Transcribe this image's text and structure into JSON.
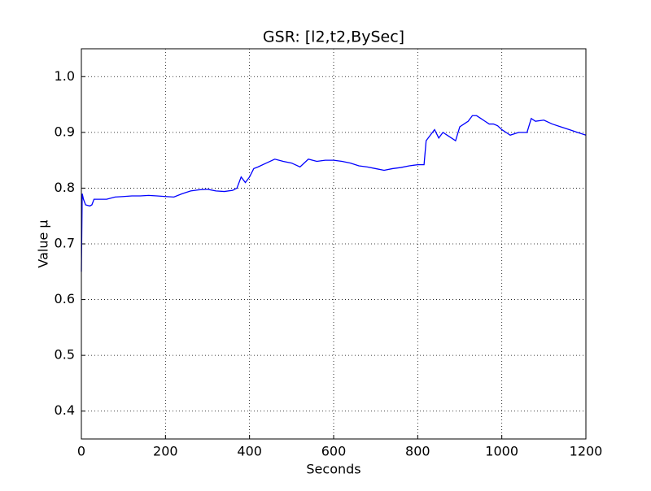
{
  "chart_data": {
    "type": "line",
    "title": "GSR: [l2,t2,BySec]",
    "x_label": "Seconds",
    "y_label": "Value μ",
    "x": [
      0,
      2,
      5,
      10,
      20,
      25,
      30,
      40,
      50,
      60,
      80,
      100,
      120,
      140,
      160,
      180,
      200,
      220,
      240,
      260,
      280,
      300,
      320,
      340,
      360,
      370,
      380,
      390,
      400,
      410,
      420,
      440,
      460,
      480,
      500,
      520,
      540,
      560,
      580,
      600,
      620,
      640,
      660,
      680,
      700,
      720,
      740,
      760,
      780,
      800,
      815,
      820,
      830,
      840,
      850,
      860,
      870,
      880,
      890,
      900,
      910,
      920,
      930,
      940,
      950,
      960,
      970,
      980,
      990,
      1000,
      1010,
      1020,
      1040,
      1060,
      1070,
      1080,
      1100,
      1120,
      1140,
      1160,
      1180,
      1200
    ],
    "series": [
      {
        "color": "#0000ff",
        "values": [
          0.65,
          0.79,
          0.78,
          0.77,
          0.768,
          0.77,
          0.78,
          0.78,
          0.78,
          0.78,
          0.784,
          0.785,
          0.786,
          0.786,
          0.787,
          0.786,
          0.785,
          0.784,
          0.79,
          0.795,
          0.797,
          0.798,
          0.795,
          0.794,
          0.796,
          0.8,
          0.82,
          0.81,
          0.82,
          0.835,
          0.838,
          0.845,
          0.852,
          0.848,
          0.845,
          0.838,
          0.852,
          0.848,
          0.85,
          0.85,
          0.848,
          0.845,
          0.84,
          0.838,
          0.835,
          0.832,
          0.835,
          0.837,
          0.84,
          0.842,
          0.842,
          0.885,
          0.895,
          0.905,
          0.89,
          0.9,
          0.895,
          0.89,
          0.885,
          0.91,
          0.915,
          0.92,
          0.93,
          0.93,
          0.925,
          0.92,
          0.915,
          0.915,
          0.912,
          0.905,
          0.9,
          0.895,
          0.9,
          0.9,
          0.925,
          0.92,
          0.922,
          0.915,
          0.91,
          0.905,
          0.9,
          0.895
        ]
      }
    ],
    "xlim": [
      0,
      1200
    ],
    "xticks": [
      0,
      200,
      400,
      600,
      800,
      1000,
      1200
    ],
    "ylim": [
      0.35,
      1.05
    ],
    "yticks": [
      0.4,
      0.5,
      0.6,
      0.7,
      0.8,
      0.9,
      {
        "value": 1,
        "label": "1.0"
      }
    ],
    "grid": true
  }
}
